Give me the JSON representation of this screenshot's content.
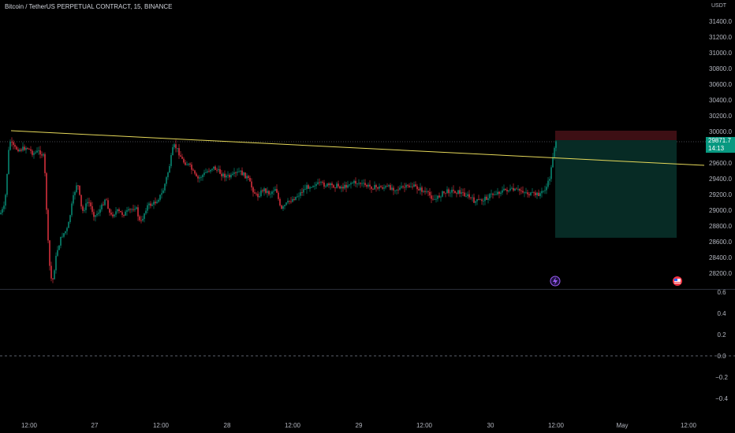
{
  "header": {
    "title": "Bitcoin / TetherUS PERPETUAL CONTRACT, 15, BINANCE",
    "currency": "USDT"
  },
  "price_axis": {
    "ticks": [
      "31400.0",
      "31200.0",
      "31000.0",
      "30800.0",
      "30600.0",
      "30400.0",
      "30200.0",
      "30000.0",
      "29600.0",
      "29400.0",
      "29200.0",
      "29000.0",
      "28800.0",
      "28600.0",
      "28400.0",
      "28200.0"
    ]
  },
  "last_price": {
    "value": "29871.7",
    "countdown": "14:13",
    "color": "#089981"
  },
  "indicator_axis": {
    "ticks": [
      "0.6",
      "0.4",
      "0.2",
      "0.0",
      "−0.2",
      "−0.4"
    ]
  },
  "time_axis": {
    "ticks": [
      "12:00",
      "27",
      "12:00",
      "28",
      "12:00",
      "29",
      "12:00",
      "30",
      "12:00",
      "May",
      "12:00"
    ]
  },
  "colors": {
    "up": "#089981",
    "down": "#f23645",
    "trendline": "#e6d95a",
    "stop_zone": "#3d0f14",
    "target_zone": "#072b25"
  },
  "icons": [
    "lightning-event-icon",
    "us-flag-event-icon"
  ]
}
